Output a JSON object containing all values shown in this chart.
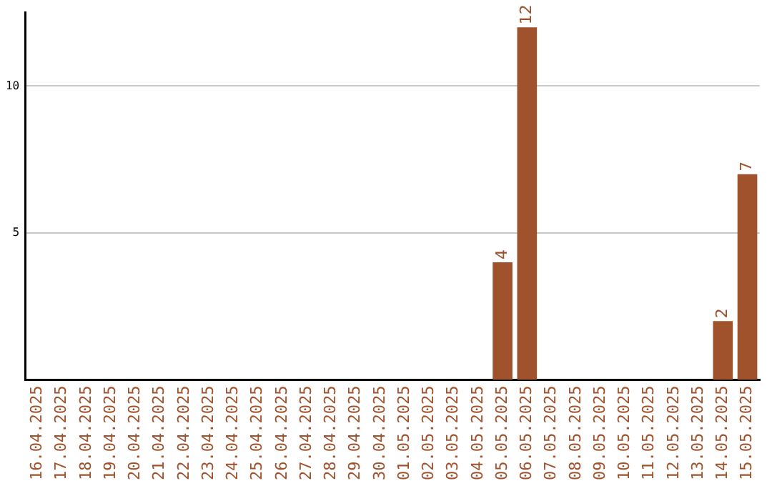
{
  "chart_data": {
    "type": "bar",
    "categories": [
      "16.04.2025",
      "17.04.2025",
      "18.04.2025",
      "19.04.2025",
      "20.04.2025",
      "21.04.2025",
      "22.04.2025",
      "23.04.2025",
      "24.04.2025",
      "25.04.2025",
      "26.04.2025",
      "27.04.2025",
      "28.04.2025",
      "29.04.2025",
      "30.04.2025",
      "01.05.2025",
      "02.05.2025",
      "03.05.2025",
      "04.05.2025",
      "05.05.2025",
      "06.05.2025",
      "07.05.2025",
      "08.05.2025",
      "09.05.2025",
      "10.05.2025",
      "11.05.2025",
      "12.05.2025",
      "13.05.2025",
      "14.05.2025",
      "15.05.2025"
    ],
    "values": [
      0,
      0,
      0,
      0,
      0,
      0,
      0,
      0,
      0,
      0,
      0,
      0,
      0,
      0,
      0,
      0,
      0,
      0,
      0,
      4,
      12,
      0,
      0,
      0,
      0,
      0,
      0,
      0,
      2,
      7
    ],
    "value_labels": [
      null,
      null,
      null,
      null,
      null,
      null,
      null,
      null,
      null,
      null,
      null,
      null,
      null,
      null,
      null,
      null,
      null,
      null,
      null,
      "4",
      "12",
      null,
      null,
      null,
      null,
      null,
      null,
      null,
      "2",
      "7"
    ],
    "color": "#a0522d",
    "ylim": [
      0,
      12.5
    ],
    "yticks": [
      5,
      10
    ],
    "grid": "y",
    "legend": false
  }
}
